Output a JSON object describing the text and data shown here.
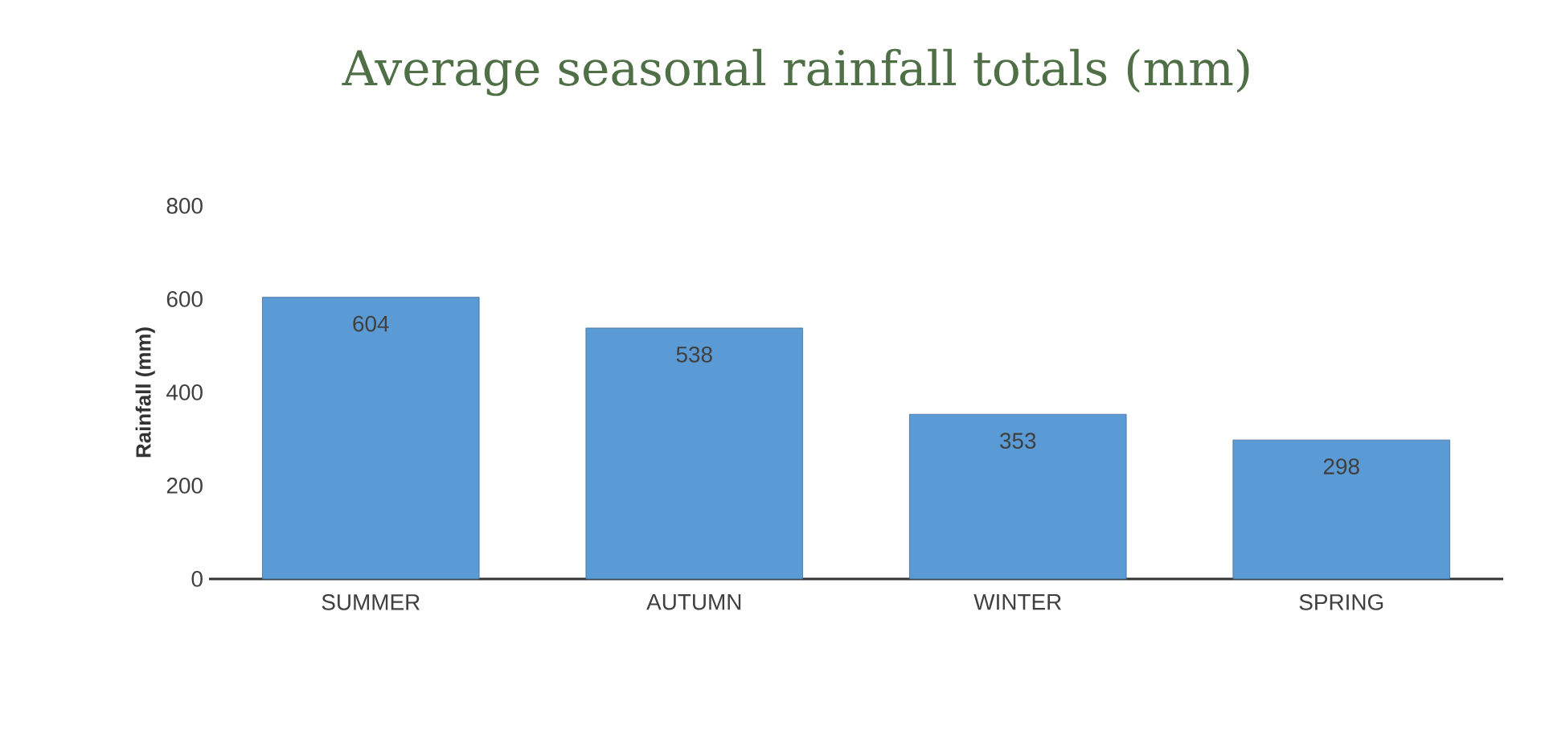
{
  "chart_data": {
    "type": "bar",
    "title": "Average seasonal rainfall totals (mm)",
    "ylabel": "Rainfall (mm)",
    "categories": [
      "SUMMER",
      "AUTUMN",
      "WINTER",
      "SPRING"
    ],
    "values": [
      604,
      538,
      353,
      298
    ],
    "color": "#5b9bd5",
    "ylim": [
      0,
      800
    ],
    "yticks": [
      0,
      200,
      400,
      600,
      800
    ],
    "data_labels": true,
    "grid": false
  }
}
